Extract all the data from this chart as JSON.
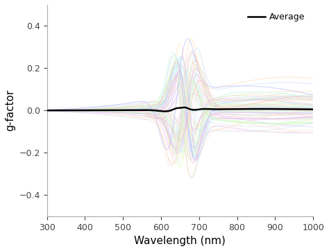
{
  "xlim": [
    300,
    1000
  ],
  "ylim": [
    -0.5,
    0.5
  ],
  "xlabel": "Wavelength (nm)",
  "ylabel": "g-factor",
  "xticks": [
    300,
    400,
    500,
    600,
    700,
    800,
    900,
    1000
  ],
  "yticks": [
    -0.4,
    -0.2,
    0.0,
    0.2,
    0.4
  ],
  "n_spectra": 80,
  "seed": 12,
  "background_color": "#ffffff",
  "legend_label": "Average",
  "avg_color": "#000000",
  "avg_linewidth": 1.8,
  "spectrum_linewidth": 0.6,
  "spectrum_alpha": 0.75,
  "figsize": [
    4.74,
    3.62
  ],
  "dpi": 100,
  "colors_pool": [
    "#ffe0b2",
    "#fff9c4",
    "#f8bbd0",
    "#e1f5fe",
    "#e8f5e9",
    "#f3e5f5",
    "#fce4ec",
    "#e0f2f1",
    "#fff3e0",
    "#e3f2fd",
    "#ffd7e8",
    "#d7f5e3",
    "#d7e8f5",
    "#f5f5d7",
    "#f5d7f5",
    "#ffcccc",
    "#ccffcc",
    "#ccccff",
    "#ffffcc",
    "#ffccff",
    "#ccffff",
    "#ffd9b3",
    "#d9ffb3",
    "#b3d9ff",
    "#ffd9ff",
    "#b3ffd9",
    "#ffb3d9",
    "#d9b3ff",
    "#b3ffff",
    "#ffe0cc",
    "#e0ffcc",
    "#cce0ff",
    "#ffe0ff",
    "#ccffe0",
    "#ffcce0",
    "#e0ccff",
    "#ccffff",
    "#f0e0d0",
    "#d0f0e0",
    "#d0e0f0",
    "#f0d0f0",
    "#f0f0d0",
    "#d0f0f0",
    "#f5deb3",
    "#deb3f5",
    "#b3f5de",
    "#f5b3de",
    "#def5b3",
    "#b3def5",
    "#f5e8c0",
    "#c0f5e8",
    "#c0e8f5",
    "#f5c0e8",
    "#e8f5c0",
    "#e8c0f5",
    "#faebd7",
    "#e6e6fa",
    "#f0fff0",
    "#f5fffa",
    "#fffacd",
    "#ffe4e1",
    "#e0ffff",
    "#fafad2",
    "#d3ffce",
    "#c9d3ff",
    "#ffc9d3",
    "#d3c9ff",
    "#ffd3c9",
    "#c9ffd3",
    "#ffd9b3",
    "#b3d9ff",
    "#d9b3ff",
    "#b3ffb3",
    "#ffb3b3",
    "#b3b3ff"
  ]
}
